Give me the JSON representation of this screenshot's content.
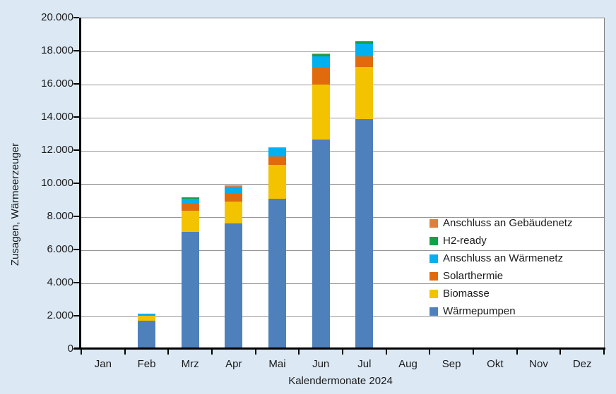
{
  "colors": {
    "page_background": "#DCE9F5",
    "plot_background": "#FFFFFF",
    "gridline": "#969696",
    "axis": "#000000",
    "text": "#1A1A1A",
    "plot_border": "#7F7F7F"
  },
  "chart_data": {
    "type": "bar",
    "subtype": "stacked-vertical",
    "title": "",
    "xlabel": "Kalendermonate 2024",
    "ylabel": "Zusagen, Wärmeerzeuger",
    "categories": [
      "Jan",
      "Feb",
      "Mrz",
      "Apr",
      "Mai",
      "Jun",
      "Jul",
      "Aug",
      "Sep",
      "Okt",
      "Nov",
      "Dez"
    ],
    "y_axis": {
      "min": 0,
      "max": 20000,
      "step": 2000,
      "tick_labels": [
        "0",
        "2.000",
        "4.000",
        "6.000",
        "8.000",
        "10.000",
        "12.000",
        "14.000",
        "16.000",
        "18.000",
        "20.000"
      ]
    },
    "grid": "horizontal",
    "series": [
      {
        "name": "Wärmepumpen",
        "color": "#4E80BC",
        "values": [
          0,
          1750,
          7100,
          7600,
          9100,
          12700,
          13900,
          0,
          0,
          0,
          0,
          0
        ]
      },
      {
        "name": "Biomasse",
        "color": "#F3C300",
        "values": [
          0,
          300,
          1280,
          1330,
          2070,
          3320,
          3160,
          0,
          0,
          0,
          0,
          0
        ]
      },
      {
        "name": "Solarthermie",
        "color": "#E16B0C",
        "values": [
          0,
          0,
          430,
          480,
          510,
          1000,
          660,
          0,
          0,
          0,
          0,
          0
        ]
      },
      {
        "name": "Anschluss an Wärmenetz",
        "color": "#00B0F0",
        "values": [
          0,
          100,
          310,
          430,
          480,
          700,
          770,
          0,
          0,
          0,
          0,
          0
        ]
      },
      {
        "name": "H2-ready",
        "color": "#13A049",
        "values": [
          0,
          0,
          60,
          0,
          0,
          90,
          110,
          0,
          0,
          0,
          0,
          0
        ]
      },
      {
        "name": "Anschluss an Gebäudenetz",
        "color": "#E07E3C",
        "values": [
          0,
          0,
          0,
          60,
          60,
          50,
          60,
          0,
          0,
          0,
          0,
          0
        ]
      }
    ],
    "legend": [
      "Anschluss an Gebäudenetz",
      "H2-ready",
      "Anschluss an Wärmenetz",
      "Solarthermie",
      "Biomasse",
      "Wärmepumpen"
    ],
    "legend_position": "inside-right"
  }
}
